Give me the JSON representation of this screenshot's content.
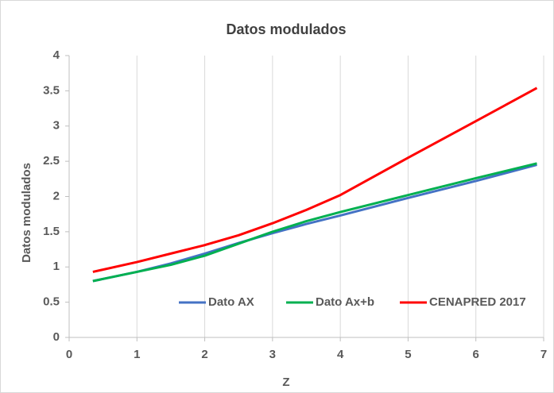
{
  "chart_data": {
    "type": "line",
    "title": "Datos modulados",
    "xlabel": "Z",
    "ylabel": "Datos modulados",
    "x": [
      0.35,
      1,
      1.5,
      2,
      2.5,
      3,
      3.5,
      4,
      5,
      6,
      6.9
    ],
    "series": [
      {
        "name": "Dato AX",
        "color": "#4472c4",
        "values": [
          0.8,
          0.93,
          1.05,
          1.19,
          1.34,
          1.48,
          1.61,
          1.73,
          1.98,
          2.22,
          2.45
        ]
      },
      {
        "name": "Dato Ax+b",
        "color": "#00b050",
        "values": [
          0.8,
          0.93,
          1.03,
          1.16,
          1.33,
          1.5,
          1.65,
          1.78,
          2.02,
          2.26,
          2.47
        ]
      },
      {
        "name": "CENAPRED 2017",
        "color": "#ff0000",
        "values": [
          0.93,
          1.07,
          1.19,
          1.31,
          1.45,
          1.62,
          1.81,
          2.02,
          2.55,
          3.07,
          3.54
        ]
      }
    ],
    "xlim": [
      0,
      7
    ],
    "xticks": [
      0,
      1,
      2,
      3,
      4,
      5,
      6,
      7
    ],
    "ylim": [
      0,
      4
    ],
    "yticks": [
      0,
      0.5,
      1,
      1.5,
      2,
      2.5,
      3,
      3.5,
      4
    ],
    "grid": "x",
    "legend": "bottom-right"
  }
}
